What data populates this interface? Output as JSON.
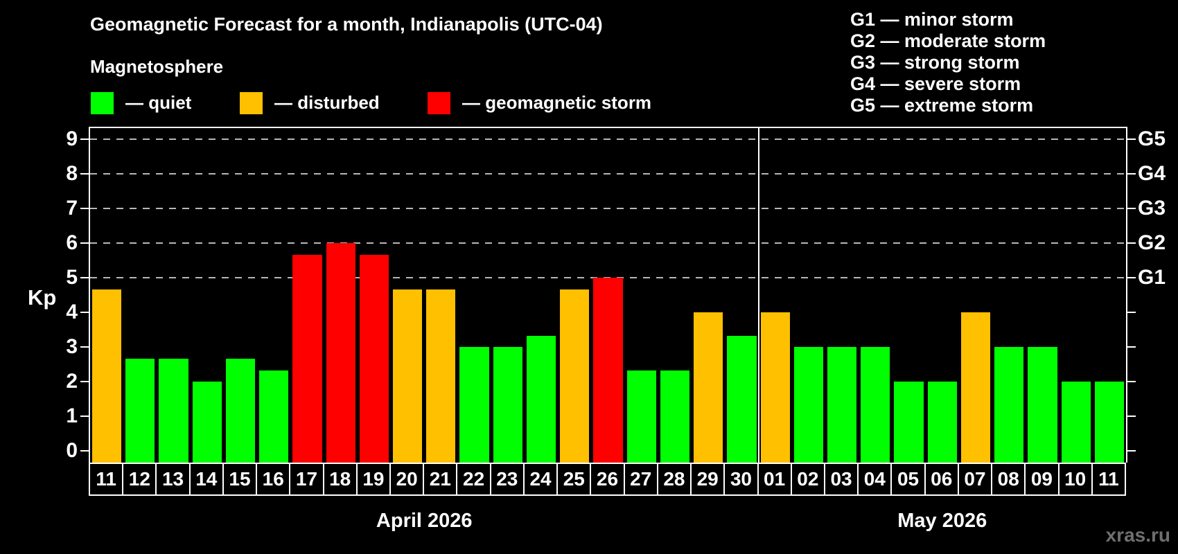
{
  "title": "Geomagnetic Forecast for a month, Indianapolis (UTC-04)",
  "subtitle": "Magnetosphere",
  "legend": {
    "items": [
      {
        "label": "— quiet",
        "status": "quiet"
      },
      {
        "label": "— disturbed",
        "status": "disturbed"
      },
      {
        "label": "— geomagnetic storm",
        "status": "storm"
      }
    ]
  },
  "g_scale_legend": [
    "G1 — minor storm",
    "G2 — moderate storm",
    "G3 — strong storm",
    "G4 — severe storm",
    "G5 — extreme storm"
  ],
  "watermark": "xras.ru",
  "colors": {
    "background": "#000000",
    "quiet": "#00ff00",
    "disturbed": "#ffc000",
    "storm": "#ff0000",
    "axis": "#ffffff",
    "gridline": "#b8b8b8",
    "watermark": "#6f6f6f"
  },
  "chart_data": {
    "type": "bar",
    "ylabel": "Kp",
    "ylim": [
      0,
      9
    ],
    "y_ticks": [
      0,
      1,
      2,
      3,
      4,
      5,
      6,
      7,
      8,
      9
    ],
    "gridline_values": [
      5,
      6,
      7,
      8,
      9
    ],
    "right_axis_labels": [
      {
        "label": "G1",
        "value": 5
      },
      {
        "label": "G2",
        "value": 6
      },
      {
        "label": "G3",
        "value": 7
      },
      {
        "label": "G4",
        "value": 8
      },
      {
        "label": "G5",
        "value": 9
      }
    ],
    "months": [
      {
        "label": "April 2026",
        "days": 20
      },
      {
        "label": "May 2026",
        "days": 11
      }
    ],
    "points": [
      {
        "date": "11",
        "month": "April",
        "kp": 4.67,
        "status": "disturbed"
      },
      {
        "date": "12",
        "month": "April",
        "kp": 2.67,
        "status": "quiet"
      },
      {
        "date": "13",
        "month": "April",
        "kp": 2.67,
        "status": "quiet"
      },
      {
        "date": "14",
        "month": "April",
        "kp": 2.0,
        "status": "quiet"
      },
      {
        "date": "15",
        "month": "April",
        "kp": 2.67,
        "status": "quiet"
      },
      {
        "date": "16",
        "month": "April",
        "kp": 2.33,
        "status": "quiet"
      },
      {
        "date": "17",
        "month": "April",
        "kp": 5.67,
        "status": "storm"
      },
      {
        "date": "18",
        "month": "April",
        "kp": 6.0,
        "status": "storm"
      },
      {
        "date": "19",
        "month": "April",
        "kp": 5.67,
        "status": "storm"
      },
      {
        "date": "20",
        "month": "April",
        "kp": 4.67,
        "status": "disturbed"
      },
      {
        "date": "21",
        "month": "April",
        "kp": 4.67,
        "status": "disturbed"
      },
      {
        "date": "22",
        "month": "April",
        "kp": 3.0,
        "status": "quiet"
      },
      {
        "date": "23",
        "month": "April",
        "kp": 3.0,
        "status": "quiet"
      },
      {
        "date": "24",
        "month": "April",
        "kp": 3.33,
        "status": "quiet"
      },
      {
        "date": "25",
        "month": "April",
        "kp": 4.67,
        "status": "disturbed"
      },
      {
        "date": "26",
        "month": "April",
        "kp": 5.0,
        "status": "storm"
      },
      {
        "date": "27",
        "month": "April",
        "kp": 2.33,
        "status": "quiet"
      },
      {
        "date": "28",
        "month": "April",
        "kp": 2.33,
        "status": "quiet"
      },
      {
        "date": "29",
        "month": "April",
        "kp": 4.0,
        "status": "disturbed"
      },
      {
        "date": "30",
        "month": "April",
        "kp": 3.33,
        "status": "quiet"
      },
      {
        "date": "01",
        "month": "May",
        "kp": 4.0,
        "status": "disturbed"
      },
      {
        "date": "02",
        "month": "May",
        "kp": 3.0,
        "status": "quiet"
      },
      {
        "date": "03",
        "month": "May",
        "kp": 3.0,
        "status": "quiet"
      },
      {
        "date": "04",
        "month": "May",
        "kp": 3.0,
        "status": "quiet"
      },
      {
        "date": "05",
        "month": "May",
        "kp": 2.0,
        "status": "quiet"
      },
      {
        "date": "06",
        "month": "May",
        "kp": 2.0,
        "status": "quiet"
      },
      {
        "date": "07",
        "month": "May",
        "kp": 4.0,
        "status": "disturbed"
      },
      {
        "date": "08",
        "month": "May",
        "kp": 3.0,
        "status": "quiet"
      },
      {
        "date": "09",
        "month": "May",
        "kp": 3.0,
        "status": "quiet"
      },
      {
        "date": "10",
        "month": "May",
        "kp": 2.0,
        "status": "quiet"
      },
      {
        "date": "11",
        "month": "May",
        "kp": 2.0,
        "status": "quiet"
      }
    ]
  }
}
